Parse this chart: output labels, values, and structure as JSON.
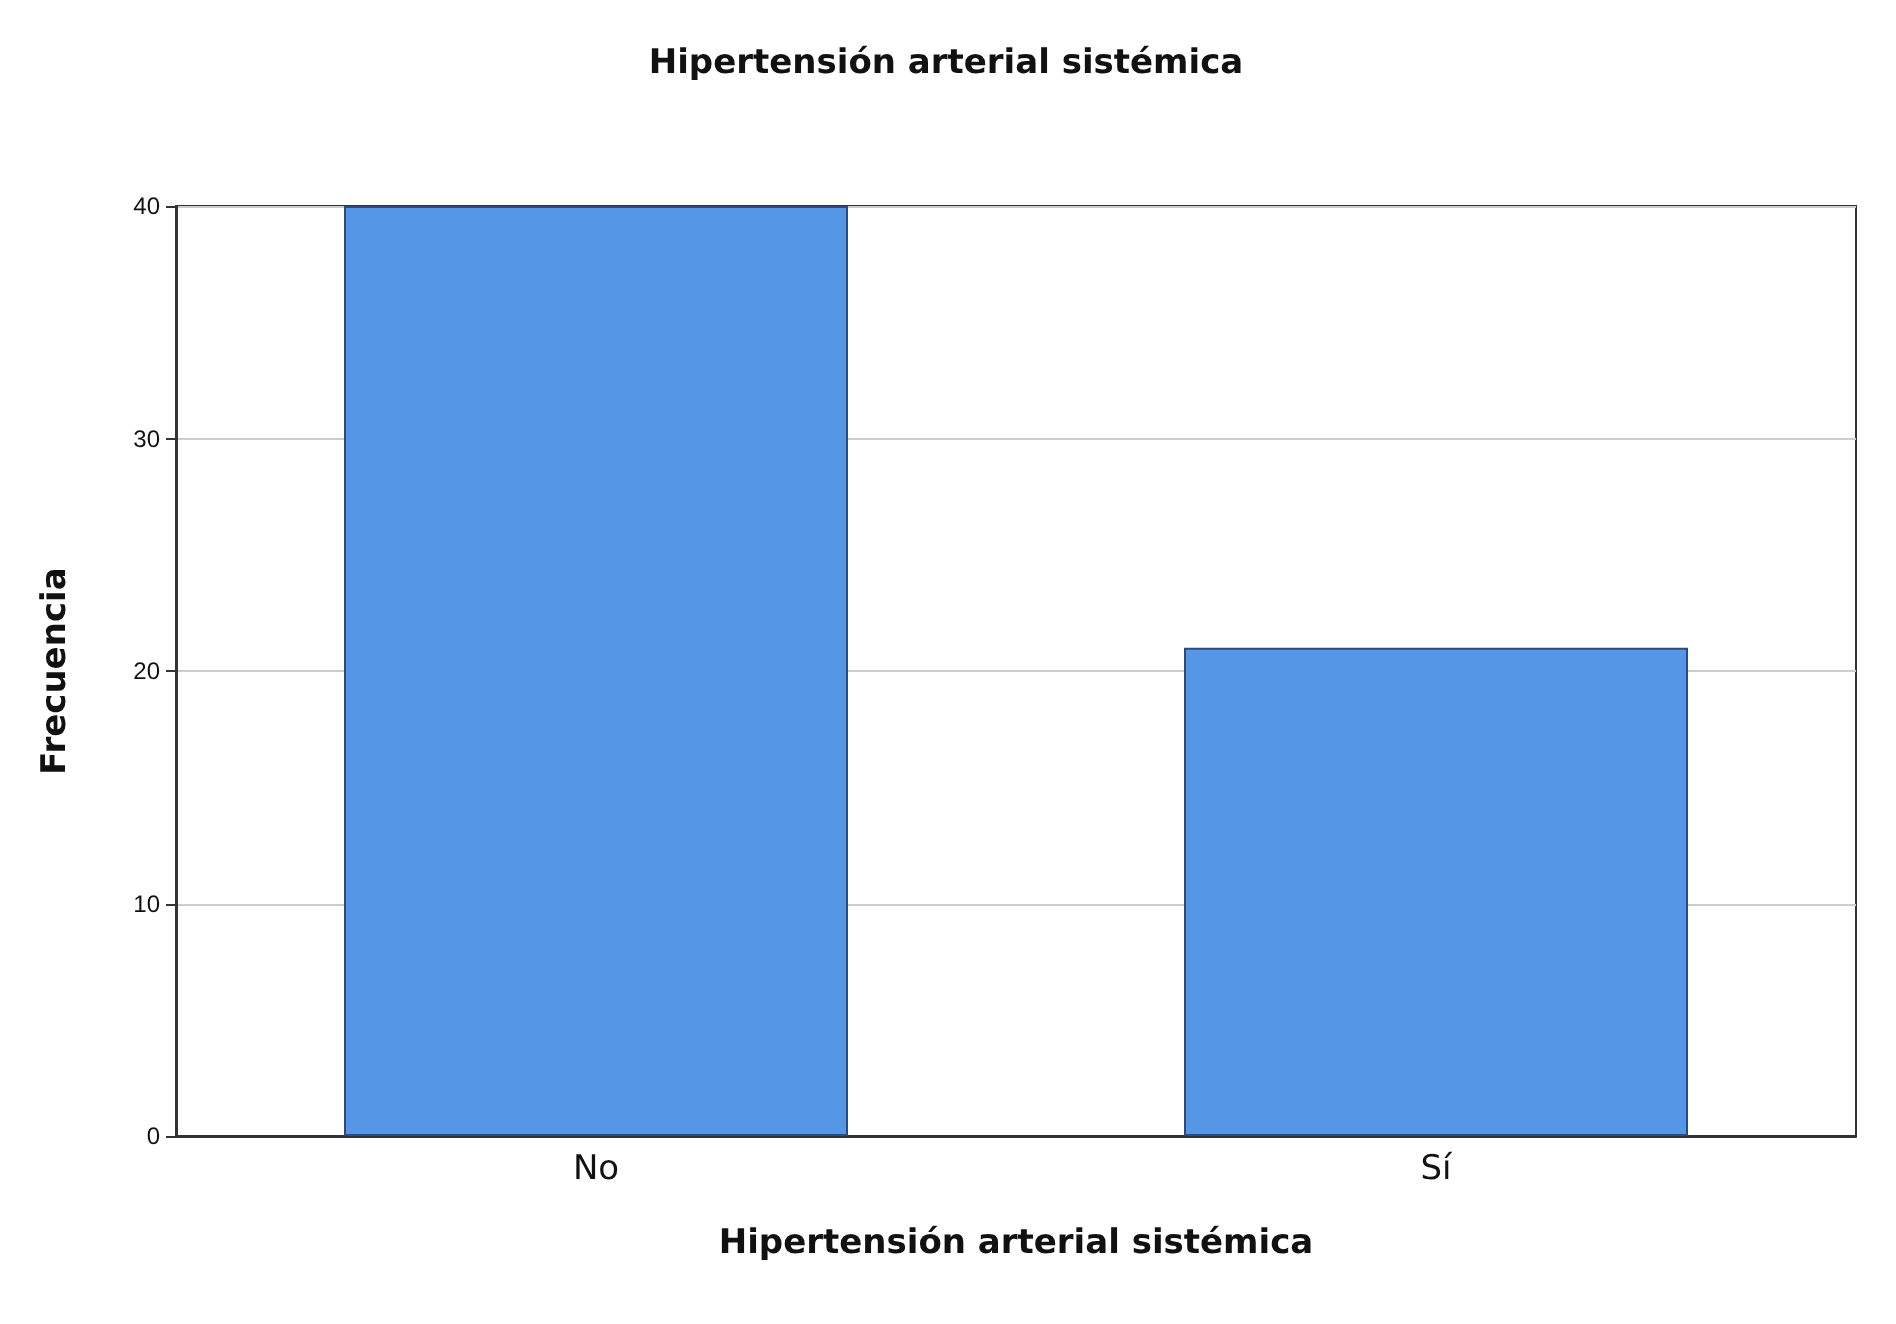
{
  "chart_data": {
    "type": "bar",
    "title": "Hipertensión arterial sistémica",
    "xlabel": "Hipertensión arterial sistémica",
    "ylabel": "Frecuencia",
    "categories": [
      "No",
      "Sí"
    ],
    "values": [
      40,
      21
    ],
    "color": "#5596e6",
    "ylim": [
      0,
      40
    ],
    "yticks": [
      0,
      10,
      20,
      30,
      40
    ],
    "grid": "y"
  }
}
